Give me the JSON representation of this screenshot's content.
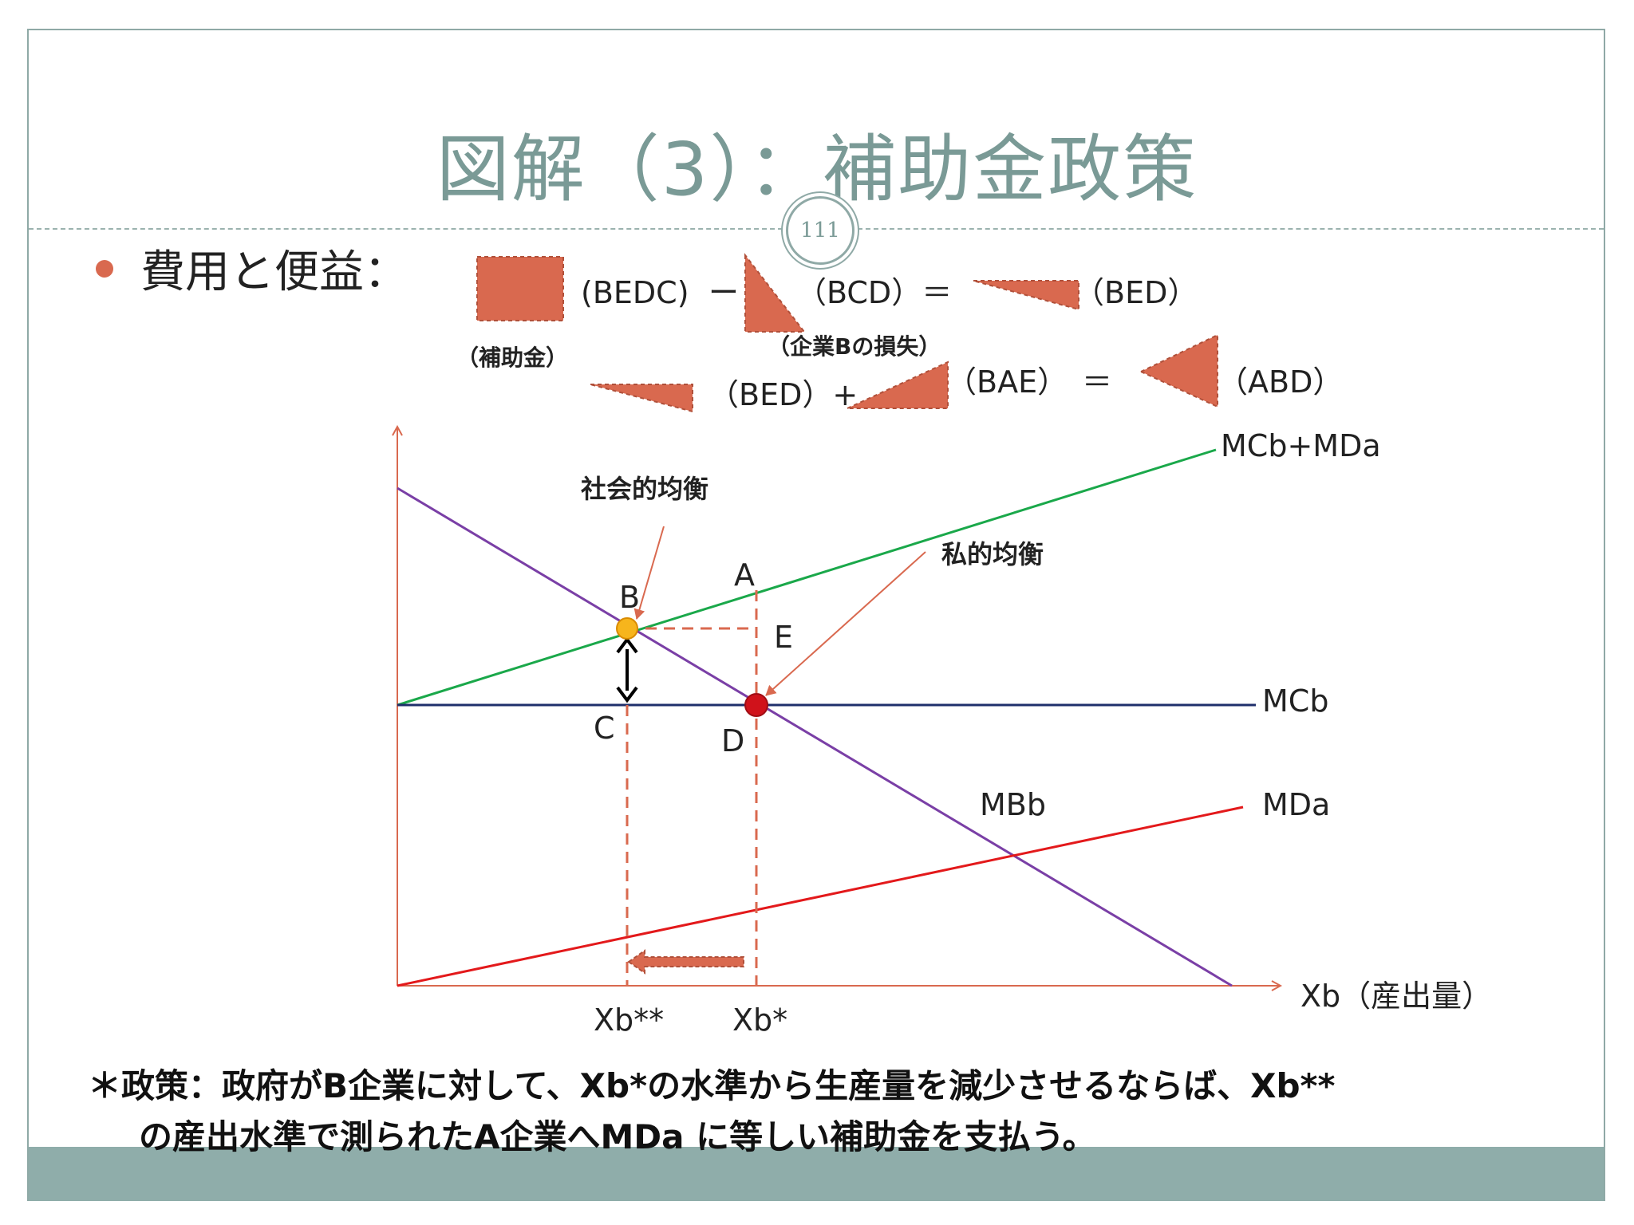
{
  "slide": {
    "title": "図解（3）：補助金政策",
    "page_number": "111",
    "heading": "費用と便益：",
    "footnote_line1": "＊政策：政府がB企業に対して、Xb*の水準から生産量を減少させるならば、Xb**",
    "footnote_line2": "の産出水準で測られたA企業へMDa に等しい補助金を支払う。"
  },
  "equation": {
    "bedc": "(BEDC)",
    "minus": "ー",
    "bcd": "（BCD）＝",
    "bed1": "（BED）",
    "subsidy_label": "（補助金）",
    "loss_label": "（企業Bの損失）",
    "bed2": "（BED）+",
    "bae": "（BAE）",
    "equals": "＝",
    "abd": "（ABD）"
  },
  "graph": {
    "curve_labels": {
      "mcb_mda": "MCb+MDa",
      "mcb": "MCb",
      "mbb": "MBb",
      "mda": "MDa"
    },
    "points": {
      "A": "A",
      "B": "B",
      "C": "C",
      "D": "D",
      "E": "E"
    },
    "annotations": {
      "social": "社会的均衡",
      "private": "私的均衡"
    },
    "x_axis_label": "Xb（産出量）",
    "ticks": {
      "xb_star_star": "Xb**",
      "xb_star": "Xb*"
    }
  },
  "colors": {
    "shape_fill": "#d9694f",
    "mcb_mda": "#1aa84a",
    "mcb": "#1f2f6b",
    "mbb": "#7a3fa6",
    "mda": "#e3191b",
    "axis": "#d9694f",
    "title": "#7a9a96"
  }
}
